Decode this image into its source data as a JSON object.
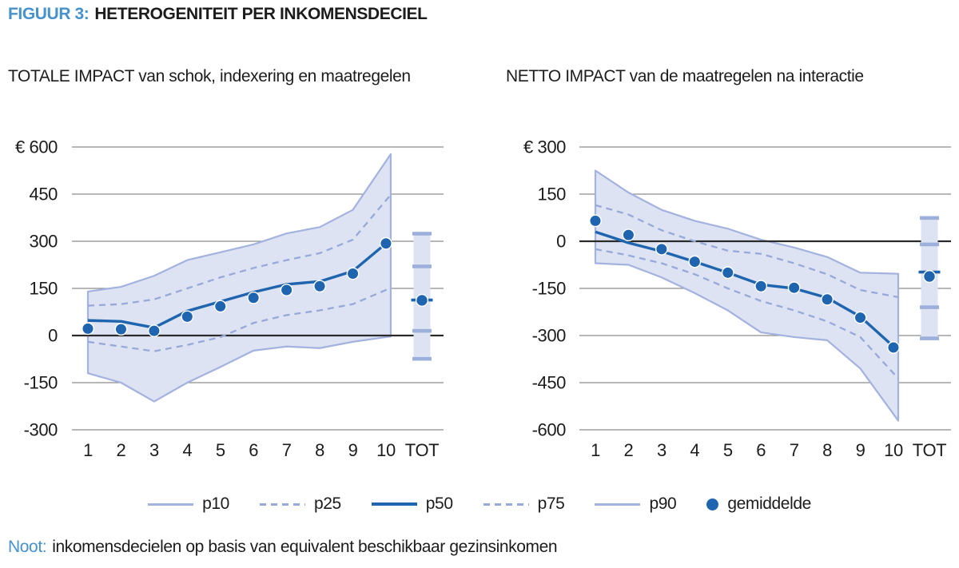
{
  "figure": {
    "label": "FIGUUR 3:",
    "title": "HETEROGENITEIT PER INKOMENSDECIEL"
  },
  "note": {
    "label": "Noot:",
    "text": "inkomensdecielen op basis van equivalent beschikbaar gezinsinkomen"
  },
  "legend": [
    {
      "key": "p10",
      "label": "p10",
      "sample": "line-light"
    },
    {
      "key": "p25",
      "label": "p25",
      "sample": "line-dashed"
    },
    {
      "key": "p50",
      "label": "p50",
      "sample": "line-dark"
    },
    {
      "key": "p75",
      "label": "p75",
      "sample": "line-dashed"
    },
    {
      "key": "p90",
      "label": "p90",
      "sample": "line-light"
    },
    {
      "key": "gemiddelde",
      "label": "gemiddelde",
      "sample": "dot"
    }
  ],
  "colors": {
    "accent_blue": "#4692cc",
    "dark_blue": "#1e64ae",
    "light_line": "#a3b2de",
    "dashed_line": "#97a9d8",
    "band_fill": "#dde3f3",
    "tot_tick": "#9db0dc",
    "gridline": "#8c8c8c",
    "zero_line": "#2a2a2a",
    "text": "#1c1c1c"
  },
  "chart_data": [
    {
      "type": "line",
      "name": "totale-impact",
      "title": "TOTALE IMPACT van schok, indexering en maatregelen",
      "categories": [
        "1",
        "2",
        "3",
        "4",
        "5",
        "6",
        "7",
        "8",
        "9",
        "10",
        "TOT"
      ],
      "ylabel_prefix": "€",
      "ylim": [
        -300,
        600
      ],
      "yticks": [
        600,
        450,
        300,
        150,
        0,
        -150,
        -300
      ],
      "grid": true,
      "legend_position": "bottom",
      "series": [
        {
          "name": "p90",
          "values": [
            140,
            155,
            190,
            240,
            265,
            290,
            325,
            345,
            400,
            555
          ]
        },
        {
          "name": "p75",
          "values": [
            95,
            100,
            115,
            150,
            185,
            215,
            240,
            262,
            305,
            430
          ]
        },
        {
          "name": "p50",
          "values": [
            48,
            45,
            25,
            78,
            108,
            138,
            163,
            172,
            205,
            293
          ]
        },
        {
          "name": "p25",
          "values": [
            -20,
            -35,
            -50,
            -30,
            -5,
            40,
            65,
            80,
            100,
            145
          ]
        },
        {
          "name": "p10",
          "values": [
            -120,
            -150,
            -210,
            -150,
            -100,
            -48,
            -35,
            -40,
            -20,
            -5
          ]
        },
        {
          "name": "gemiddelde",
          "values": [
            22,
            20,
            15,
            60,
            93,
            120,
            145,
            157,
            197,
            293
          ]
        }
      ],
      "tot": {
        "p90": 330,
        "p75": 220,
        "p50": 113,
        "gemiddelde": 112,
        "p25": 15,
        "p10": -80
      }
    },
    {
      "type": "line",
      "name": "netto-impact",
      "title": "NETTO IMPACT van de maatregelen na interactie",
      "categories": [
        "1",
        "2",
        "3",
        "4",
        "5",
        "6",
        "7",
        "8",
        "9",
        "10",
        "TOT"
      ],
      "ylabel_prefix": "€",
      "ylim": [
        -600,
        300
      ],
      "yticks": [
        300,
        150,
        0,
        -150,
        -300,
        -450,
        -600
      ],
      "grid": true,
      "legend_position": "bottom",
      "series": [
        {
          "name": "p90",
          "values": [
            225,
            155,
            100,
            65,
            40,
            5,
            -20,
            -50,
            -100,
            -103
          ]
        },
        {
          "name": "p75",
          "values": [
            115,
            85,
            35,
            0,
            -30,
            -40,
            -70,
            -105,
            -155,
            -175
          ]
        },
        {
          "name": "p50",
          "values": [
            30,
            -5,
            -32,
            -65,
            -100,
            -138,
            -150,
            -180,
            -240,
            -335
          ]
        },
        {
          "name": "p25",
          "values": [
            -25,
            -45,
            -70,
            -105,
            -150,
            -190,
            -220,
            -255,
            -305,
            -420
          ]
        },
        {
          "name": "p10",
          "values": [
            -70,
            -75,
            -115,
            -165,
            -220,
            -290,
            -305,
            -315,
            -405,
            -550
          ]
        },
        {
          "name": "gemiddelde",
          "values": [
            65,
            20,
            -25,
            -65,
            -100,
            -143,
            -148,
            -185,
            -243,
            -338
          ]
        }
      ],
      "tot": {
        "p90": 80,
        "p75": -10,
        "p50": -98,
        "gemiddelde": -112,
        "p25": -210,
        "p10": -315
      }
    }
  ]
}
